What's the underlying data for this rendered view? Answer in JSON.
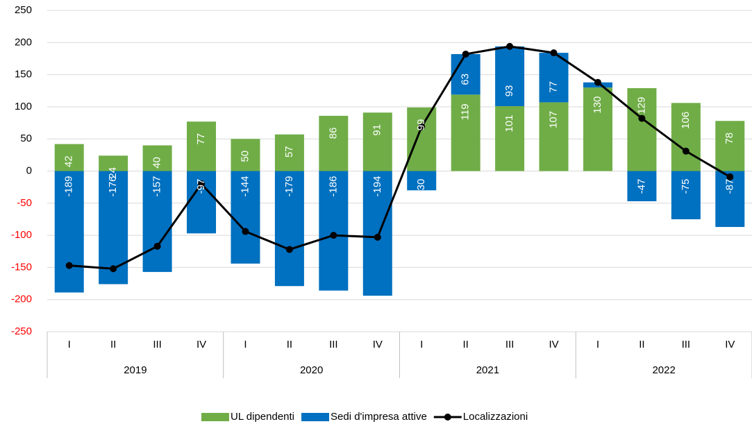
{
  "chart_data": {
    "type": "bar",
    "quarters": [
      "I",
      "II",
      "III",
      "IV",
      "I",
      "II",
      "III",
      "IV",
      "I",
      "II",
      "III",
      "IV",
      "I",
      "II",
      "III",
      "IV"
    ],
    "years": [
      "2019",
      "2020",
      "2021",
      "2022"
    ],
    "series": [
      {
        "name": "UL dipendenti",
        "color": "#70ad47",
        "values": [
          42,
          24,
          40,
          77,
          50,
          57,
          86,
          91,
          99,
          119,
          101,
          107,
          130,
          129,
          106,
          78
        ]
      },
      {
        "name": "Sedi d'impresa attive",
        "color": "#0070c0",
        "values": [
          -189,
          -176,
          -157,
          -97,
          -144,
          -179,
          -186,
          -194,
          -30,
          63,
          93,
          77,
          8,
          -47,
          -75,
          -87
        ],
        "value_labels": [
          -189,
          -176,
          -157,
          -97,
          -144,
          -179,
          -186,
          -194,
          -30,
          63,
          93,
          77,
          null,
          -47,
          -75,
          -87
        ]
      },
      {
        "name": "Localizzazioni",
        "color": "#000000",
        "type": "line",
        "values": [
          -147,
          -152,
          -117,
          -20,
          -94,
          -122,
          -100,
          -103,
          69,
          182,
          194,
          184,
          138,
          82,
          31,
          -9
        ]
      }
    ],
    "ylim": [
      -250,
      250
    ],
    "yticks": [
      -250,
      -200,
      -150,
      -100,
      -50,
      0,
      50,
      100,
      150,
      200,
      250
    ],
    "negative_tick_color": "#ff0000",
    "grid": true,
    "legend": "bottom"
  }
}
